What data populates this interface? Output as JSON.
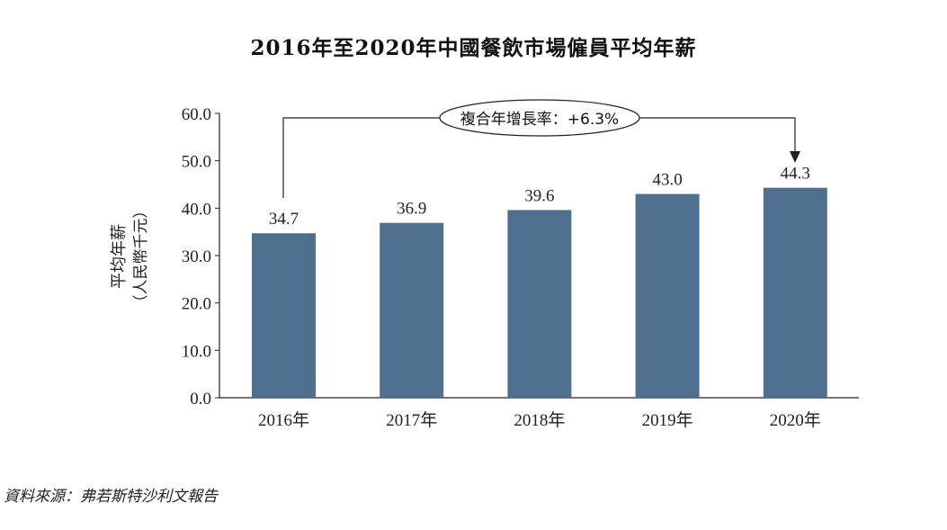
{
  "chart_data": {
    "type": "bar",
    "title": "2016年至2020年中國餐飲市場僱員平均年薪",
    "ylabel_line1": "平均年薪",
    "ylabel_line2": "（人民幣千元）",
    "xlabel": "",
    "categories": [
      "2016年",
      "2017年",
      "2018年",
      "2019年",
      "2020年"
    ],
    "values": [
      34.7,
      36.9,
      39.6,
      43.0,
      44.3
    ],
    "data_labels": [
      "34.7",
      "36.9",
      "39.6",
      "43.0",
      "44.3"
    ],
    "ylim": [
      0,
      60
    ],
    "yticks": [
      "0.0",
      "10.0",
      "20.0",
      "30.0",
      "40.0",
      "50.0",
      "60.0"
    ],
    "grid": false,
    "bar_color": "#4f6f8f",
    "annotation": "複合年增長率：+6.3%"
  },
  "source": "資料來源：弗若斯特沙利文報告"
}
